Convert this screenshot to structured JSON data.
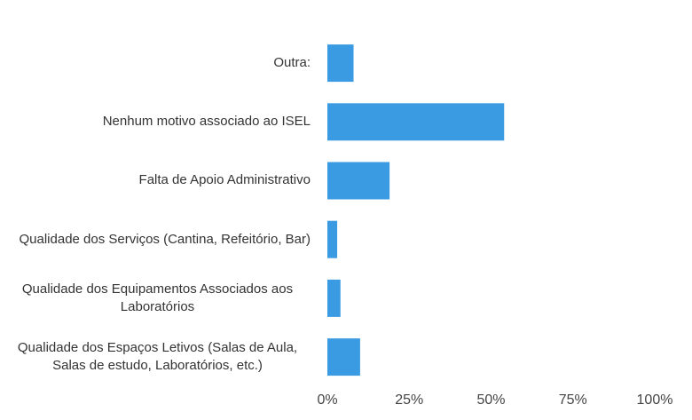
{
  "chart_data": {
    "type": "barh",
    "categories": [
      "Outra:",
      "Nenhum  motivo associado ao ISEL",
      "Falta de Apoio Administrativo",
      "Qualidade dos Serviços (Cantina, Refeitório, Bar)",
      "Qualidade dos Equipamentos Associados aos Laboratórios",
      "Qualidade dos Espaços Letivos (Salas de Aula, Salas de estudo, Laboratórios, etc.)"
    ],
    "values": [
      8,
      54,
      19,
      3,
      4,
      10
    ],
    "color": "#3a9be2",
    "xlim": [
      0,
      100
    ],
    "xticks": [
      {
        "value": 0,
        "label": "0%"
      },
      {
        "value": 25,
        "label": "25%"
      },
      {
        "value": 50,
        "label": "50%"
      },
      {
        "value": 75,
        "label": "75%"
      },
      {
        "value": 100,
        "label": "100%"
      }
    ],
    "grid": false
  }
}
